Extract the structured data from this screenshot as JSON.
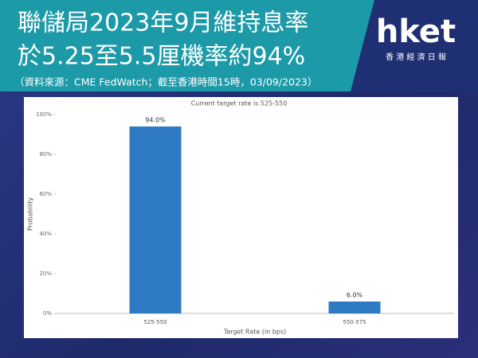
{
  "header": {
    "title_lines": [
      "聯儲局2023年9月維持息率",
      "於5.25至5.5厘機率約94%"
    ],
    "source": "（資料來源：CME FedWatch；截至香港時間15時，03/09/2023）",
    "logo": "hket",
    "logo_sub": "香 港 經 濟 日 報"
  },
  "chart_data": {
    "type": "bar",
    "title": "Current target rate is 525-550",
    "x_label": "Target Rate (in bps)",
    "y_label": "Probability",
    "categories": [
      "525-550",
      "550-575"
    ],
    "values": [
      94.0,
      6.0
    ],
    "value_labels": [
      "94.0%",
      "6.0%"
    ],
    "color": "#2e7bc4",
    "ylim": [
      0,
      100
    ],
    "yticks": [
      {
        "value": 0,
        "label": "0%"
      },
      {
        "value": 20,
        "label": "20%"
      },
      {
        "value": 40,
        "label": "40%"
      },
      {
        "value": 60,
        "label": "60%"
      },
      {
        "value": 80,
        "label": "80%"
      },
      {
        "value": 100,
        "label": "100%"
      }
    ],
    "grid": false
  }
}
